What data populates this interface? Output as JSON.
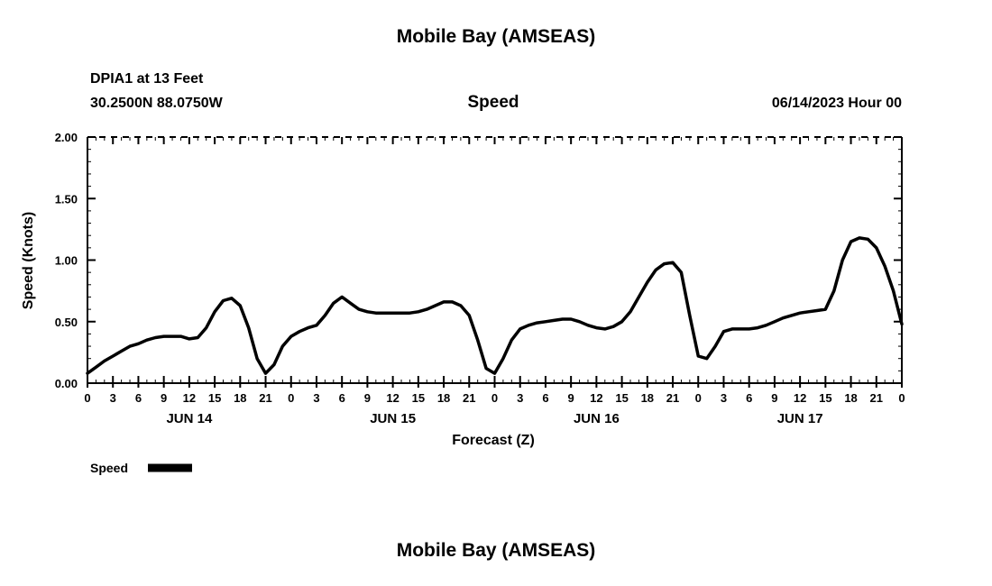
{
  "page": {
    "title": "Mobile Bay (AMSEAS)",
    "bottom_title": "Mobile Bay (AMSEAS)"
  },
  "header": {
    "station": "DPIA1 at 13 Feet",
    "coordinates": "30.2500N  88.0750W",
    "panel_title": "Speed",
    "run_time": "06/14/2023 Hour 00"
  },
  "legend": {
    "label": "Speed"
  },
  "chart_data": {
    "type": "line",
    "title": "Speed",
    "xlabel": "Forecast (Z)",
    "ylabel": "Speed (Knots)",
    "xlim": [
      0,
      96
    ],
    "ylim": [
      0.0,
      2.0
    ],
    "y_major_step": 0.5,
    "y_minor_step": 0.1,
    "x_tick_step_hours": 3,
    "x_minor_step_hours": 1,
    "y_tick_labels": [
      "0.00",
      "0.50",
      "1.00",
      "1.50",
      "2.00"
    ],
    "x_tick_label_mod": 24,
    "day_labels": [
      {
        "hour": 12,
        "label": "JUN 14"
      },
      {
        "hour": 36,
        "label": "JUN 15"
      },
      {
        "hour": 60,
        "label": "JUN 16"
      },
      {
        "hour": 84,
        "label": "JUN 17"
      }
    ],
    "grid": false,
    "legend_position": "bottom-left",
    "line_color": "#000000",
    "line_width": 3.5,
    "series": [
      {
        "name": "Speed",
        "x": [
          0,
          1,
          2,
          3,
          4,
          5,
          6,
          7,
          8,
          9,
          10,
          11,
          12,
          13,
          14,
          15,
          16,
          17,
          18,
          19,
          20,
          21,
          22,
          23,
          24,
          25,
          26,
          27,
          28,
          29,
          30,
          31,
          32,
          33,
          34,
          35,
          36,
          37,
          38,
          39,
          40,
          41,
          42,
          43,
          44,
          45,
          46,
          47,
          48,
          49,
          50,
          51,
          52,
          53,
          54,
          55,
          56,
          57,
          58,
          59,
          60,
          61,
          62,
          63,
          64,
          65,
          66,
          67,
          68,
          69,
          70,
          71,
          72,
          73,
          74,
          75,
          76,
          77,
          78,
          79,
          80,
          81,
          82,
          83,
          84,
          85,
          86,
          87,
          88,
          89,
          90,
          91,
          92,
          93,
          94,
          95,
          96
        ],
        "values": [
          0.08,
          0.13,
          0.18,
          0.22,
          0.26,
          0.3,
          0.32,
          0.35,
          0.37,
          0.38,
          0.38,
          0.38,
          0.36,
          0.37,
          0.45,
          0.58,
          0.67,
          0.69,
          0.63,
          0.45,
          0.2,
          0.08,
          0.15,
          0.3,
          0.38,
          0.42,
          0.45,
          0.47,
          0.55,
          0.65,
          0.7,
          0.65,
          0.6,
          0.58,
          0.57,
          0.57,
          0.57,
          0.57,
          0.57,
          0.58,
          0.6,
          0.63,
          0.66,
          0.66,
          0.63,
          0.55,
          0.35,
          0.12,
          0.08,
          0.2,
          0.35,
          0.44,
          0.47,
          0.49,
          0.5,
          0.51,
          0.52,
          0.52,
          0.5,
          0.47,
          0.45,
          0.44,
          0.46,
          0.5,
          0.58,
          0.7,
          0.82,
          0.92,
          0.97,
          0.98,
          0.9,
          0.55,
          0.22,
          0.2,
          0.3,
          0.42,
          0.44,
          0.44,
          0.44,
          0.45,
          0.47,
          0.5,
          0.53,
          0.55,
          0.57,
          0.58,
          0.59,
          0.6,
          0.75,
          1.0,
          1.15,
          1.18,
          1.17,
          1.1,
          0.95,
          0.75,
          0.48
        ]
      }
    ]
  }
}
